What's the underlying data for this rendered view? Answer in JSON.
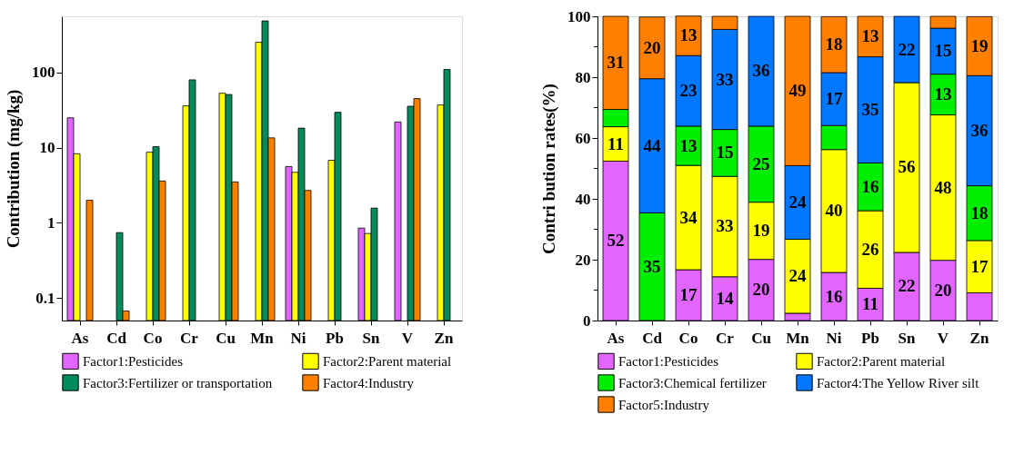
{
  "chart_data": [
    {
      "type": "bar",
      "log": true,
      "ylabel": "Contribution (mg/kg)",
      "categories": [
        "As",
        "Cd",
        "Co",
        "Cr",
        "Cu",
        "Mn",
        "Ni",
        "Pb",
        "Sn",
        "V",
        "Zn"
      ],
      "ylim": [
        0.05,
        560
      ],
      "yticks": [
        0.1,
        1,
        10,
        100
      ],
      "legend": "bottom",
      "grid": false,
      "series": [
        {
          "name": "Factor1:Pesticides",
          "color": "#e066ff",
          "values": [
            25,
            null,
            null,
            null,
            null,
            null,
            5.6,
            null,
            0.85,
            22,
            null
          ]
        },
        {
          "name": "Factor2:Parent material",
          "color": "#ffff00",
          "values": [
            8.3,
            null,
            8.7,
            36,
            53,
            254,
            4.7,
            6.8,
            0.72,
            null,
            37
          ]
        },
        {
          "name": "Factor3:Fertilizer or transportation",
          "color": "#008a5e",
          "values": [
            null,
            0.74,
            10.3,
            80,
            51,
            487,
            18.2,
            29.6,
            1.57,
            35.6,
            110
          ]
        },
        {
          "name": "Factor4:Industry",
          "color": "#ff7f00",
          "values": [
            2.0,
            0.067,
            3.6,
            null,
            3.5,
            13.5,
            2.7,
            null,
            null,
            45,
            null
          ]
        }
      ]
    },
    {
      "type": "bar",
      "stacked": true,
      "ylabel": "Contri bution rates(%)",
      "categories": [
        "As",
        "Cd",
        "Co",
        "Cr",
        "Cu",
        "Mn",
        "Ni",
        "Pb",
        "Sn",
        "V",
        "Zn"
      ],
      "ylim": [
        0,
        100
      ],
      "yticks": [
        0,
        {
          "value": 10,
          "label": null
        },
        20,
        {
          "value": 30,
          "label": null
        },
        40,
        {
          "value": 50,
          "label": null
        },
        60,
        {
          "value": 70,
          "label": null
        },
        80,
        {
          "value": 90,
          "label": null
        },
        100
      ],
      "legend": "bottom",
      "grid": false,
      "series": [
        {
          "name": "Factor1:Pesticides",
          "color": "#e066ff",
          "values": [
            52.4,
            null,
            16.7,
            14.4,
            20.1,
            2.4,
            15.8,
            10.6,
            22.4,
            19.8,
            9.1
          ],
          "value_labels": [
            "52",
            null,
            "17",
            "14",
            "20",
            null,
            "16",
            "11",
            "22",
            "20",
            null
          ]
        },
        {
          "name": "Factor2:Parent material",
          "color": "#ffff00",
          "values": [
            11.3,
            null,
            34.3,
            33.0,
            18.8,
            24.3,
            40.4,
            25.5,
            55.8,
            47.8,
            17.2
          ],
          "value_labels": [
            "11",
            null,
            "34",
            "33",
            "19",
            "24",
            "40",
            "26",
            "56",
            "48",
            "17"
          ]
        },
        {
          "name": "Factor3:Chemical fertilizer",
          "color": "#00ee00",
          "values": [
            5.7,
            35.4,
            12.9,
            15.4,
            25.0,
            null,
            7.9,
            15.7,
            null,
            13.4,
            18.0
          ],
          "value_labels": [
            null,
            "35",
            "13",
            "15",
            "25",
            null,
            null,
            "16",
            null,
            "13",
            "18"
          ]
        },
        {
          "name": "Factor4:The Yellow River silt",
          "color": "#0077ff",
          "values": [
            null,
            44.1,
            23.2,
            32.9,
            36.1,
            24.2,
            17.4,
            34.9,
            21.8,
            15.1,
            36.2
          ],
          "value_labels": [
            null,
            "44",
            "23",
            "33",
            "36",
            "24",
            "17",
            "35",
            "22",
            "15",
            "36"
          ]
        },
        {
          "name": "Factor5:Industry",
          "color": "#ff7f00",
          "values": [
            30.6,
            20.3,
            13.0,
            4.3,
            null,
            49.1,
            18.4,
            13.3,
            null,
            3.9,
            19.4
          ],
          "value_labels": [
            "31",
            "20",
            "13",
            null,
            null,
            "49",
            "18",
            "13",
            null,
            null,
            "19"
          ]
        }
      ]
    }
  ]
}
